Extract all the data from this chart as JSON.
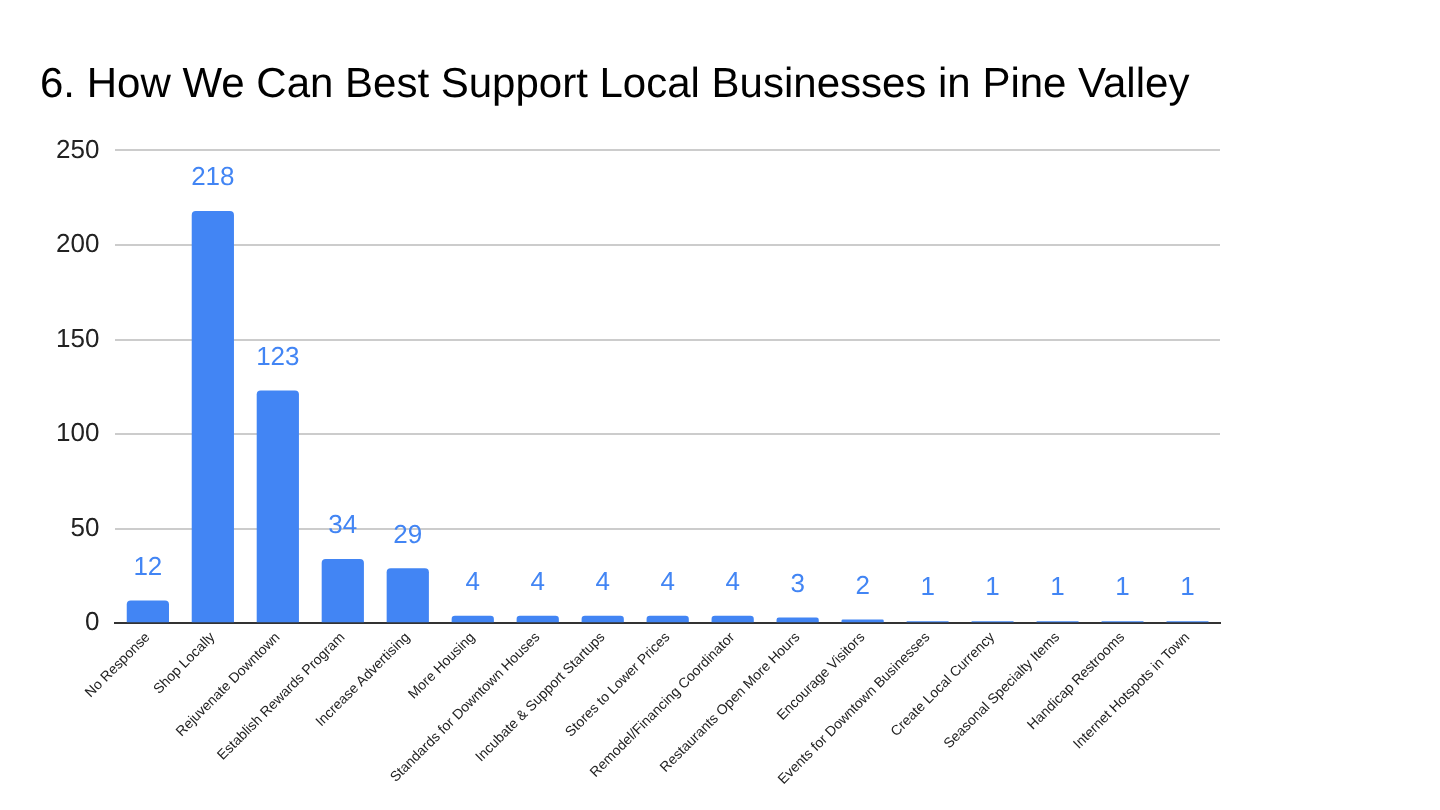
{
  "chart_data": {
    "type": "bar",
    "title": "6. How We Can Best Support Local Businesses in Pine Valley",
    "categories": [
      "No Response",
      "Shop Locally",
      "Rejuvenate Downtown",
      "Establish Rewards Program",
      "Increase Advertising",
      "More Housing",
      "Standards for Downtown Houses",
      "Incubate & Support Startups",
      "Stores to Lower Prices",
      "Remodel/Financing Coordinator",
      "Restaurants Open More Hours",
      "Encourage Visitors",
      "Events for Downtown Businesses",
      "Create Local Currency",
      "Seasonal Specialty Items",
      "Handicap Restrooms",
      "Internet Hotspots in Town"
    ],
    "values": [
      12,
      218,
      123,
      34,
      29,
      4,
      4,
      4,
      4,
      4,
      3,
      2,
      1,
      1,
      1,
      1,
      1
    ],
    "color": "#4285f4",
    "ylim": [
      0,
      250
    ],
    "yticks": [
      0,
      50,
      100,
      150,
      200,
      250
    ],
    "grid": "y",
    "data_labels": true
  }
}
